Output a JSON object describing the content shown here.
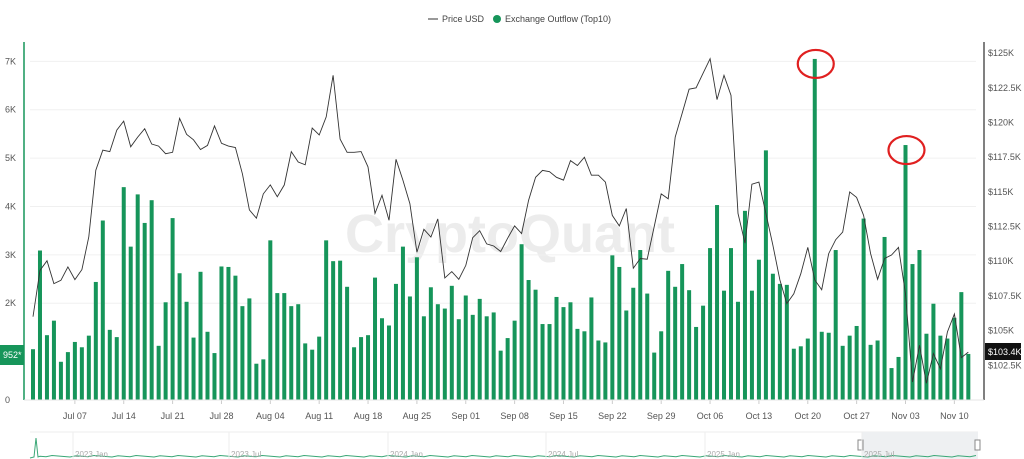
{
  "chart_data": {
    "type": "bar+line",
    "watermark": "CryptoQuant",
    "legend": {
      "placement": "top-center",
      "items": [
        {
          "name": "Price USD",
          "symbol": "line",
          "color": "#333333"
        },
        {
          "name": "Exchange Outflow (Top10)",
          "symbol": "dot",
          "color": "#16955a"
        }
      ]
    },
    "x": [
      "Jul 01",
      "Jul 02",
      "Jul 03",
      "Jul 04",
      "Jul 05",
      "Jul 06",
      "Jul 07",
      "Jul 08",
      "Jul 09",
      "Jul 10",
      "Jul 11",
      "Jul 12",
      "Jul 13",
      "Jul 14",
      "Jul 15",
      "Jul 16",
      "Jul 17",
      "Jul 18",
      "Jul 19",
      "Jul 20",
      "Jul 21",
      "Jul 22",
      "Jul 23",
      "Jul 24",
      "Jul 25",
      "Jul 26",
      "Jul 27",
      "Jul 28",
      "Jul 29",
      "Jul 30",
      "Jul 31",
      "Aug 01",
      "Aug 02",
      "Aug 03",
      "Aug 04",
      "Aug 05",
      "Aug 06",
      "Aug 07",
      "Aug 08",
      "Aug 09",
      "Aug 10",
      "Aug 11",
      "Aug 12",
      "Aug 13",
      "Aug 14",
      "Aug 15",
      "Aug 16",
      "Aug 17",
      "Aug 18",
      "Aug 19",
      "Aug 20",
      "Aug 21",
      "Aug 22",
      "Aug 23",
      "Aug 24",
      "Aug 25",
      "Aug 26",
      "Aug 27",
      "Aug 28",
      "Aug 29",
      "Aug 30",
      "Aug 31",
      "Sep 01",
      "Sep 02",
      "Sep 03",
      "Sep 04",
      "Sep 05",
      "Sep 06",
      "Sep 07",
      "Sep 08",
      "Sep 09",
      "Sep 10",
      "Sep 11",
      "Sep 12",
      "Sep 13",
      "Sep 14",
      "Sep 15",
      "Sep 16",
      "Sep 17",
      "Sep 18",
      "Sep 19",
      "Sep 20",
      "Sep 21",
      "Sep 22",
      "Sep 23",
      "Sep 24",
      "Sep 25",
      "Sep 26",
      "Sep 27",
      "Sep 28",
      "Sep 29",
      "Sep 30",
      "Oct 01",
      "Oct 02",
      "Oct 03",
      "Oct 04",
      "Oct 05",
      "Oct 06",
      "Oct 07",
      "Oct 08",
      "Oct 09",
      "Oct 10",
      "Oct 11",
      "Oct 12",
      "Oct 13",
      "Oct 14",
      "Oct 15",
      "Oct 16",
      "Oct 17",
      "Oct 18",
      "Oct 19",
      "Oct 20",
      "Oct 21",
      "Oct 22",
      "Oct 23",
      "Oct 24",
      "Oct 25",
      "Oct 26",
      "Oct 27",
      "Oct 28",
      "Oct 29",
      "Oct 30",
      "Oct 31",
      "Nov 01",
      "Nov 02",
      "Nov 03",
      "Nov 04",
      "Nov 05",
      "Nov 06",
      "Nov 07",
      "Nov 08",
      "Nov 09",
      "Nov 10",
      "Nov 11",
      "Nov 12"
    ],
    "x_tick_labels": [
      "Jul 07",
      "Jul 14",
      "Jul 21",
      "Jul 28",
      "Aug 04",
      "Aug 11",
      "Aug 18",
      "Aug 25",
      "Sep 01",
      "Sep 08",
      "Sep 15",
      "Sep 22",
      "Sep 29",
      "Oct 06",
      "Oct 13",
      "Oct 20",
      "Oct 27",
      "Nov 03",
      "Nov 10"
    ],
    "series": [
      {
        "name": "Exchange Outflow (Top10)",
        "type": "bar",
        "axis": "left",
        "color": "#16955a",
        "values": [
          1050,
          3090,
          1340,
          1640,
          790,
          990,
          1200,
          1090,
          1330,
          2440,
          3710,
          1450,
          1300,
          4400,
          3170,
          4250,
          3660,
          4130,
          1120,
          2020,
          3760,
          2620,
          2030,
          1290,
          2650,
          1410,
          970,
          2760,
          2750,
          2570,
          1940,
          2100,
          750,
          840,
          3300,
          2210,
          2210,
          1940,
          1980,
          1170,
          1040,
          1310,
          3300,
          2870,
          2880,
          2340,
          1090,
          1300,
          1340,
          2530,
          1690,
          1540,
          2400,
          3170,
          2140,
          2950,
          1730,
          2330,
          1980,
          1890,
          2360,
          1670,
          2160,
          1760,
          2090,
          1730,
          1810,
          1020,
          1280,
          1640,
          3220,
          2480,
          2280,
          1570,
          1570,
          2130,
          1920,
          2020,
          1470,
          1420,
          2120,
          1230,
          1190,
          2990,
          2750,
          1850,
          2320,
          3100,
          2200,
          980,
          1420,
          2670,
          2340,
          2810,
          2270,
          1510,
          1950,
          3140,
          4030,
          2260,
          3140,
          2030,
          3910,
          2260,
          2900,
          5160,
          2610,
          2400,
          2380,
          1060,
          1110,
          1270,
          7050,
          1410,
          1390,
          3100,
          1120,
          1330,
          1530,
          3750,
          1140,
          1230,
          3370,
          660,
          890,
          5270,
          2810,
          3100,
          1370,
          1990,
          1330,
          1270,
          1700,
          2230,
          952
        ]
      },
      {
        "name": "Price USD",
        "type": "line",
        "axis": "right",
        "color": "#333333",
        "values": [
          106000,
          109350,
          110030,
          108390,
          108630,
          109590,
          108680,
          109400,
          111760,
          116560,
          118000,
          117900,
          119450,
          120100,
          118250,
          118950,
          119550,
          118450,
          118300,
          117750,
          117850,
          120300,
          119150,
          118750,
          118050,
          118350,
          119750,
          118500,
          118300,
          118200,
          116300,
          113700,
          113100,
          114850,
          115500,
          114650,
          115500,
          117900,
          117150,
          116950,
          119600,
          119100,
          120400,
          123400,
          118800,
          117850,
          117850,
          117900,
          116800,
          113450,
          114750,
          112950,
          117350,
          115850,
          114150,
          110650,
          112300,
          111750,
          113050,
          108800,
          109250,
          108700,
          109700,
          111700,
          112200,
          111250,
          111100,
          110700,
          111650,
          112550,
          112000,
          114400,
          116050,
          116550,
          116450,
          116050,
          115850,
          117250,
          116900,
          117500,
          116200,
          116200,
          115700,
          113300,
          112550,
          113800,
          109500,
          110200,
          110150,
          112500,
          114850,
          114500,
          118950,
          120650,
          122400,
          122500,
          123550,
          124600,
          121650,
          123400,
          121950,
          113450,
          111300,
          115550,
          115700,
          113450,
          111150,
          108650,
          106950,
          107650,
          109100,
          111000,
          108650,
          107950,
          110550,
          111550,
          112100,
          115000,
          114600,
          113300,
          110550,
          108700,
          110200,
          110450,
          111000,
          107650,
          101300,
          103950,
          101200,
          103350,
          102250,
          104900,
          106200,
          103050,
          103450
        ]
      }
    ],
    "left_axis": {
      "ticks": [
        0,
        2000,
        3000,
        4000,
        5000,
        6000,
        7000
      ],
      "tick_labels": [
        "0",
        "2K",
        "3K",
        "4K",
        "5K",
        "6K",
        "7K"
      ],
      "range": [
        0,
        7400
      ],
      "color": "#16955a"
    },
    "right_axis": {
      "ticks": [
        102500,
        105000,
        107500,
        110000,
        112500,
        115000,
        117500,
        120000,
        122500,
        125000
      ],
      "tick_labels": [
        "$102.5K",
        "$105K",
        "$107.5K",
        "$110K",
        "$112.5K",
        "$115K",
        "$117.5K",
        "$120K",
        "$122.5K",
        "$125K"
      ],
      "range": [
        100000,
        125800
      ],
      "color": "#000000"
    },
    "last_value_badges": {
      "left": "952*",
      "right": "$103.4K"
    },
    "grid": true,
    "annotations": [
      {
        "type": "red-circle",
        "x": "Oct 21",
        "color": "#e02020"
      },
      {
        "type": "red-circle",
        "x": "Nov 03",
        "color": "#e02020"
      }
    ],
    "navigator": {
      "labels": [
        "2023 Jan",
        "2023 Jul",
        "2024 Jan",
        "2024 Jul",
        "2025 Jan",
        "2025 Jul"
      ],
      "selected_range": "2025 Jul – Nov 12"
    }
  }
}
